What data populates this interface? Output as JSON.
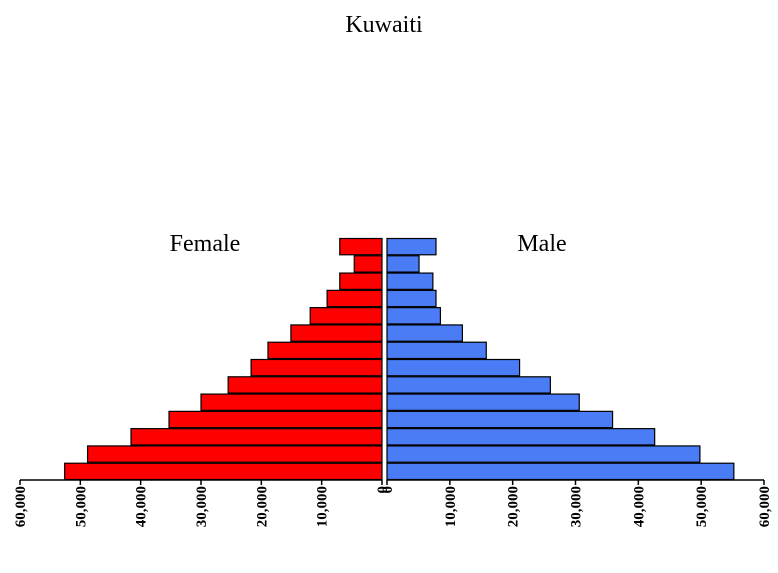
{
  "chart_data": {
    "type": "pyramid",
    "title": "Kuwaiti",
    "xlim": [
      0,
      60000
    ],
    "xticks": [
      0,
      {
        "value": 10000,
        "label": "10,000"
      },
      {
        "value": 20000,
        "label": "20,000"
      },
      {
        "value": 30000,
        "label": "30,000"
      },
      {
        "value": 40000,
        "label": "40,000"
      },
      {
        "value": 50000,
        "label": "50,000"
      },
      {
        "value": 60000,
        "label": "60,000"
      }
    ],
    "series": [
      {
        "name": "Female",
        "color": "#ff0000",
        "values": [
          52600,
          48800,
          41600,
          35300,
          30000,
          25500,
          21700,
          18900,
          15100,
          11900,
          9100,
          7000,
          4600,
          7000
        ]
      },
      {
        "name": "Male",
        "color": "#4a7cf5",
        "values": [
          55200,
          49800,
          42600,
          35900,
          30600,
          26000,
          21100,
          15800,
          12000,
          8500,
          7800,
          7300,
          5100,
          7800
        ]
      }
    ]
  }
}
